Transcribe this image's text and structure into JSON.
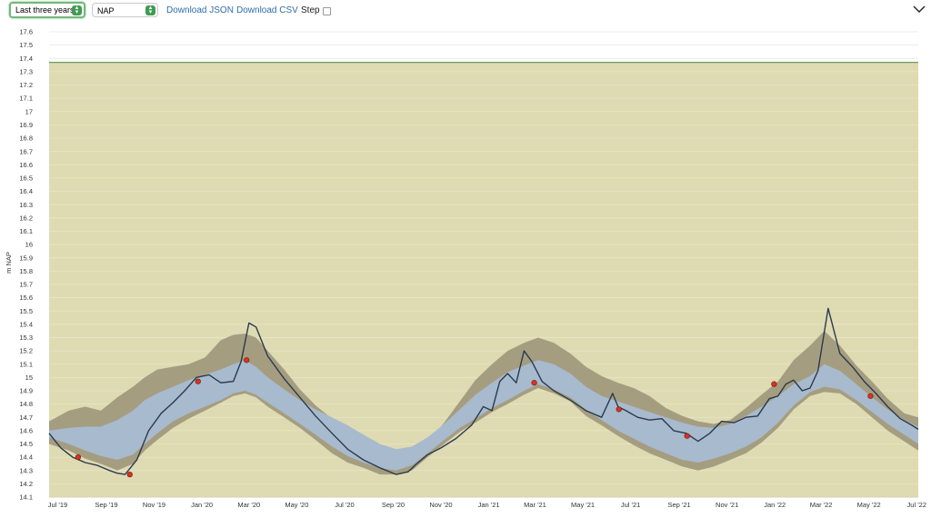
{
  "toolbar": {
    "range_select": "Last three years",
    "unit_select": "NAP",
    "download_json": "Download JSON",
    "download_csv": "Download CSV",
    "step_label": "Step",
    "step_checked": false
  },
  "icons": {
    "select_arrow": "updown-arrow-icon",
    "collapse": "chevron-down-icon"
  },
  "colors": {
    "plot_background": "#dedab2",
    "grid": "#eae6c4",
    "band_outer": "#a59d80",
    "band_inner": "#a8bacd",
    "series_line": "#2a3b4f",
    "reference_line": "#6e9b5e",
    "marker_fill": "#e0301e"
  },
  "chart_data": {
    "type": "line",
    "title": "",
    "xlabel": "",
    "ylabel": "m NAP",
    "xlim": [
      "2019-06-20",
      "2022-07-03"
    ],
    "ylim": [
      14.1,
      17.6
    ],
    "ytick_step": 0.1,
    "ytick_labels": [
      "14.1",
      "14.2",
      "14.3",
      "14.4",
      "14.5",
      "14.6",
      "14.7",
      "14.8",
      "14.9",
      "15",
      "15.1",
      "15.2",
      "15.3",
      "15.4",
      "15.5",
      "15.6",
      "15.7",
      "15.8",
      "15.9",
      "16",
      "16.1",
      "16.2",
      "16.3",
      "16.4",
      "16.5",
      "16.6",
      "16.7",
      "16.8",
      "16.9",
      "17",
      "17.1",
      "17.2",
      "17.3",
      "17.4",
      "17.5",
      "17.6"
    ],
    "xticks": [
      {
        "label": "Jul '19",
        "date": "2019-07-01"
      },
      {
        "label": "Sep '19",
        "date": "2019-09-01"
      },
      {
        "label": "Nov '19",
        "date": "2019-11-01"
      },
      {
        "label": "Jan '20",
        "date": "2020-01-01"
      },
      {
        "label": "Mar '20",
        "date": "2020-03-01"
      },
      {
        "label": "May '20",
        "date": "2020-05-01"
      },
      {
        "label": "Jul '20",
        "date": "2020-07-01"
      },
      {
        "label": "Sep '20",
        "date": "2020-09-01"
      },
      {
        "label": "Nov '20",
        "date": "2020-11-01"
      },
      {
        "label": "Jan '21",
        "date": "2021-01-01"
      },
      {
        "label": "Mar '21",
        "date": "2021-03-01"
      },
      {
        "label": "May '21",
        "date": "2021-05-01"
      },
      {
        "label": "Jul '21",
        "date": "2021-07-01"
      },
      {
        "label": "Sep '21",
        "date": "2021-09-01"
      },
      {
        "label": "Nov '21",
        "date": "2021-11-01"
      },
      {
        "label": "Jan '22",
        "date": "2022-01-01"
      },
      {
        "label": "Mar '22",
        "date": "2022-03-01"
      },
      {
        "label": "May '22",
        "date": "2022-05-01"
      },
      {
        "label": "Jul '22",
        "date": "2022-07-01"
      }
    ],
    "reference_line": {
      "y": 17.37
    },
    "grid": true,
    "legend": "none",
    "series": [
      {
        "role": "min-max-range",
        "x": [
          "2019-06-20",
          "2019-07-15",
          "2019-08-05",
          "2019-08-25",
          "2019-09-15",
          "2019-10-05",
          "2019-10-20",
          "2019-11-05",
          "2019-11-25",
          "2019-12-15",
          "2020-01-05",
          "2020-01-25",
          "2020-02-10",
          "2020-02-25",
          "2020-03-10",
          "2020-03-25",
          "2020-04-15",
          "2020-05-05",
          "2020-05-25",
          "2020-06-15",
          "2020-07-05",
          "2020-07-25",
          "2020-08-15",
          "2020-09-05",
          "2020-09-25",
          "2020-10-15",
          "2020-11-05",
          "2020-11-25",
          "2020-12-15",
          "2021-01-05",
          "2021-01-25",
          "2021-02-15",
          "2021-03-05",
          "2021-03-25",
          "2021-04-15",
          "2021-05-05",
          "2021-05-25",
          "2021-06-15",
          "2021-07-05",
          "2021-07-25",
          "2021-08-15",
          "2021-09-05",
          "2021-09-25",
          "2021-10-15",
          "2021-11-05",
          "2021-11-25",
          "2021-12-15",
          "2022-01-05",
          "2022-01-25",
          "2022-02-15",
          "2022-03-05",
          "2022-03-25",
          "2022-04-15",
          "2022-05-05",
          "2022-05-25",
          "2022-06-15",
          "2022-07-03"
        ],
        "high": [
          14.67,
          14.75,
          14.78,
          14.75,
          14.85,
          14.93,
          15.0,
          15.06,
          15.08,
          15.1,
          15.15,
          15.28,
          15.32,
          15.33,
          15.3,
          15.2,
          15.06,
          14.91,
          14.79,
          14.69,
          14.6,
          14.52,
          14.45,
          14.39,
          14.41,
          14.5,
          14.66,
          14.82,
          14.98,
          15.1,
          15.2,
          15.26,
          15.3,
          15.26,
          15.18,
          15.08,
          15.01,
          14.96,
          14.92,
          14.86,
          14.77,
          14.71,
          14.67,
          14.65,
          14.68,
          14.77,
          14.87,
          14.97,
          15.13,
          15.24,
          15.35,
          15.24,
          15.09,
          14.97,
          14.84,
          14.73,
          14.7
        ],
        "low": [
          14.5,
          14.45,
          14.39,
          14.35,
          14.3,
          14.35,
          14.45,
          14.53,
          14.62,
          14.69,
          14.75,
          14.81,
          14.86,
          14.88,
          14.85,
          14.78,
          14.7,
          14.62,
          14.53,
          14.43,
          14.36,
          14.32,
          14.27,
          14.27,
          14.3,
          14.4,
          14.5,
          14.59,
          14.66,
          14.74,
          14.8,
          14.87,
          14.92,
          14.88,
          14.82,
          14.71,
          14.64,
          14.56,
          14.49,
          14.43,
          14.38,
          14.33,
          14.3,
          14.33,
          14.38,
          14.43,
          14.51,
          14.62,
          14.76,
          14.86,
          14.89,
          14.88,
          14.8,
          14.7,
          14.6,
          14.52,
          14.45
        ]
      },
      {
        "role": "percentile-band",
        "x": [
          "2019-06-20",
          "2019-07-15",
          "2019-08-05",
          "2019-08-25",
          "2019-09-15",
          "2019-10-05",
          "2019-10-20",
          "2019-11-05",
          "2019-11-25",
          "2019-12-15",
          "2020-01-05",
          "2020-01-25",
          "2020-02-10",
          "2020-02-25",
          "2020-03-10",
          "2020-03-25",
          "2020-04-15",
          "2020-05-05",
          "2020-05-25",
          "2020-06-15",
          "2020-07-05",
          "2020-07-25",
          "2020-08-15",
          "2020-09-05",
          "2020-09-25",
          "2020-10-15",
          "2020-11-05",
          "2020-11-25",
          "2020-12-15",
          "2021-01-05",
          "2021-01-25",
          "2021-02-15",
          "2021-03-05",
          "2021-03-25",
          "2021-04-15",
          "2021-05-05",
          "2021-05-25",
          "2021-06-15",
          "2021-07-05",
          "2021-07-25",
          "2021-08-15",
          "2021-09-05",
          "2021-09-25",
          "2021-10-15",
          "2021-11-05",
          "2021-11-25",
          "2021-12-15",
          "2022-01-05",
          "2022-01-25",
          "2022-02-15",
          "2022-03-05",
          "2022-03-25",
          "2022-04-15",
          "2022-05-05",
          "2022-05-25",
          "2022-06-15",
          "2022-07-03"
        ],
        "high": [
          14.6,
          14.62,
          14.63,
          14.63,
          14.68,
          14.75,
          14.83,
          14.88,
          14.93,
          14.98,
          15.02,
          15.06,
          15.1,
          15.13,
          15.08,
          15.0,
          14.91,
          14.83,
          14.76,
          14.7,
          14.64,
          14.57,
          14.5,
          14.46,
          14.48,
          14.55,
          14.65,
          14.76,
          14.87,
          14.96,
          15.04,
          15.09,
          15.13,
          15.1,
          15.03,
          14.93,
          14.86,
          14.82,
          14.78,
          14.74,
          14.7,
          14.66,
          14.63,
          14.62,
          14.65,
          14.71,
          14.78,
          14.86,
          14.95,
          15.01,
          15.1,
          15.05,
          14.95,
          14.85,
          14.76,
          14.68,
          14.63
        ],
        "low": [
          14.55,
          14.5,
          14.45,
          14.41,
          14.38,
          14.42,
          14.5,
          14.58,
          14.67,
          14.73,
          14.78,
          14.83,
          14.88,
          14.9,
          14.87,
          14.81,
          14.73,
          14.65,
          14.57,
          14.48,
          14.41,
          14.36,
          14.32,
          14.3,
          14.34,
          14.43,
          14.53,
          14.62,
          14.69,
          14.77,
          14.83,
          14.9,
          14.95,
          14.91,
          14.85,
          14.76,
          14.68,
          14.6,
          14.54,
          14.48,
          14.43,
          14.38,
          14.36,
          14.39,
          14.43,
          14.48,
          14.55,
          14.66,
          14.79,
          14.89,
          14.93,
          14.91,
          14.83,
          14.74,
          14.65,
          14.57,
          14.5
        ]
      },
      {
        "role": "measured",
        "x": [
          "2019-06-20",
          "2019-07-05",
          "2019-07-20",
          "2019-08-05",
          "2019-08-20",
          "2019-09-05",
          "2019-09-15",
          "2019-09-25",
          "2019-10-10",
          "2019-10-25",
          "2019-11-10",
          "2019-11-25",
          "2019-12-10",
          "2019-12-25",
          "2020-01-10",
          "2020-01-25",
          "2020-02-10",
          "2020-02-20",
          "2020-03-01",
          "2020-03-10",
          "2020-03-25",
          "2020-04-15",
          "2020-05-05",
          "2020-05-25",
          "2020-06-15",
          "2020-07-05",
          "2020-07-25",
          "2020-08-15",
          "2020-09-05",
          "2020-09-20",
          "2020-10-01",
          "2020-10-15",
          "2020-11-01",
          "2020-11-20",
          "2020-12-10",
          "2020-12-25",
          "2021-01-05",
          "2021-01-15",
          "2021-01-25",
          "2021-02-05",
          "2021-02-15",
          "2021-02-25",
          "2021-03-10",
          "2021-03-25",
          "2021-04-15",
          "2021-05-05",
          "2021-05-25",
          "2021-06-08",
          "2021-06-15",
          "2021-06-25",
          "2021-07-10",
          "2021-07-25",
          "2021-08-10",
          "2021-08-25",
          "2021-09-10",
          "2021-09-25",
          "2021-10-10",
          "2021-10-25",
          "2021-11-10",
          "2021-11-25",
          "2021-12-10",
          "2021-12-25",
          "2022-01-05",
          "2022-01-15",
          "2022-01-25",
          "2022-02-05",
          "2022-02-15",
          "2022-02-25",
          "2022-03-10",
          "2022-03-25",
          "2022-04-10",
          "2022-04-25",
          "2022-05-10",
          "2022-05-25",
          "2022-06-10",
          "2022-06-25",
          "2022-07-03"
        ],
        "y": [
          14.58,
          14.47,
          14.4,
          14.36,
          14.34,
          14.3,
          14.28,
          14.27,
          14.38,
          14.6,
          14.73,
          14.81,
          14.9,
          15.0,
          15.02,
          14.96,
          14.97,
          15.12,
          15.41,
          15.38,
          15.16,
          14.99,
          14.85,
          14.71,
          14.58,
          14.46,
          14.38,
          14.32,
          14.27,
          14.29,
          14.35,
          14.42,
          14.47,
          14.54,
          14.64,
          14.78,
          14.75,
          14.97,
          15.03,
          14.96,
          15.2,
          15.12,
          14.97,
          14.9,
          14.83,
          14.75,
          14.7,
          14.88,
          14.78,
          14.75,
          14.7,
          14.68,
          14.69,
          14.6,
          14.58,
          14.52,
          14.58,
          14.67,
          14.66,
          14.7,
          14.71,
          14.84,
          14.86,
          14.95,
          14.98,
          14.9,
          14.92,
          15.05,
          15.52,
          15.18,
          15.08,
          14.97,
          14.88,
          14.78,
          14.69,
          14.64,
          14.61
        ]
      },
      {
        "role": "markers",
        "x": [
          "2019-07-27",
          "2019-10-01",
          "2019-12-27",
          "2020-02-27",
          "2021-02-28",
          "2021-06-16",
          "2021-09-11",
          "2021-12-31",
          "2022-05-03"
        ],
        "y": [
          14.4,
          14.27,
          14.97,
          15.13,
          14.96,
          14.76,
          14.56,
          14.95,
          14.86
        ]
      }
    ]
  }
}
